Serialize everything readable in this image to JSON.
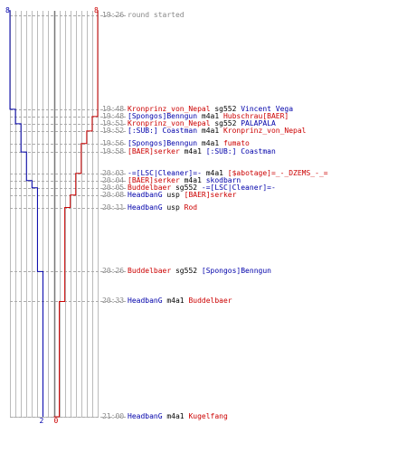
{
  "colors": {
    "team_blue": "#0000aa",
    "team_red": "#cc0000",
    "time": "#888888",
    "grid": "#bbbbbb",
    "dash": "#aaaaaa",
    "center": "#777777",
    "weapon": "#000000"
  },
  "counts": {
    "blue_start": "8",
    "red_start": "8",
    "blue_end": "2",
    "red_end": "0"
  },
  "events": [
    {
      "time": "19:26",
      "parts": [
        {
          "t": "round started",
          "c": "time"
        }
      ],
      "blue": 8,
      "red": 8
    },
    {
      "time": "19:48",
      "parts": [
        {
          "t": "Kronprinz_von_Nepal",
          "c": "red"
        },
        {
          "t": " sg552 ",
          "c": "weapon"
        },
        {
          "t": "Vincent Vega",
          "c": "blue"
        }
      ],
      "blue": 7,
      "red": 8
    },
    {
      "time": "19:48",
      "parts": [
        {
          "t": "[Spongos]Benngun",
          "c": "blue"
        },
        {
          "t": " m4a1 ",
          "c": "weapon"
        },
        {
          "t": "Hubschrau[BAER]",
          "c": "red"
        }
      ],
      "blue": 7,
      "red": 7
    },
    {
      "time": "19:51",
      "parts": [
        {
          "t": "Kronprinz_von_Nepal",
          "c": "red"
        },
        {
          "t": " sg552 ",
          "c": "weapon"
        },
        {
          "t": "PALAPALA",
          "c": "blue"
        }
      ],
      "blue": 6,
      "red": 7
    },
    {
      "time": "19:52",
      "parts": [
        {
          "t": "[:SUB:] Coastman",
          "c": "blue"
        },
        {
          "t": " m4a1 ",
          "c": "weapon"
        },
        {
          "t": "Kronprinz_von_Nepal",
          "c": "red"
        }
      ],
      "blue": 6,
      "red": 6
    },
    {
      "time": "19:56",
      "parts": [
        {
          "t": "[Spongos]Benngun",
          "c": "blue"
        },
        {
          "t": " m4a1 ",
          "c": "weapon"
        },
        {
          "t": "fumato",
          "c": "red"
        }
      ],
      "blue": 6,
      "red": 5
    },
    {
      "time": "19:58",
      "parts": [
        {
          "t": "[BAER]serker",
          "c": "red"
        },
        {
          "t": " m4a1 ",
          "c": "weapon"
        },
        {
          "t": "[:SUB:] Coastman",
          "c": "blue"
        }
      ],
      "blue": 5,
      "red": 5
    },
    {
      "time": "20:03",
      "parts": [
        {
          "t": "-=[LSC|Cleaner]=-",
          "c": "blue"
        },
        {
          "t": " m4a1 ",
          "c": "weapon"
        },
        {
          "t": "[$abotage]=_-_DZEMS_-_=",
          "c": "red"
        }
      ],
      "blue": 5,
      "red": 4
    },
    {
      "time": "20:04",
      "parts": [
        {
          "t": "[BAER]serker",
          "c": "red"
        },
        {
          "t": " m4a1 ",
          "c": "weapon"
        },
        {
          "t": "skodbarn",
          "c": "blue"
        }
      ],
      "blue": 4,
      "red": 4
    },
    {
      "time": "20:05",
      "parts": [
        {
          "t": "Buddelbaer",
          "c": "red"
        },
        {
          "t": " sg552 ",
          "c": "weapon"
        },
        {
          "t": "-=[LSC|Cleaner]=-",
          "c": "blue"
        }
      ],
      "blue": 3,
      "red": 4
    },
    {
      "time": "20:08",
      "parts": [
        {
          "t": "HeadbanG",
          "c": "blue"
        },
        {
          "t": " usp ",
          "c": "weapon"
        },
        {
          "t": "[BAER]serker",
          "c": "red"
        }
      ],
      "blue": 3,
      "red": 3
    },
    {
      "time": "20:11",
      "parts": [
        {
          "t": "HeadbanG",
          "c": "blue"
        },
        {
          "t": " usp ",
          "c": "weapon"
        },
        {
          "t": "Rod",
          "c": "red"
        }
      ],
      "blue": 3,
      "red": 2
    },
    {
      "time": "20:26",
      "parts": [
        {
          "t": "Buddelbaer",
          "c": "red"
        },
        {
          "t": " sg552 ",
          "c": "weapon"
        },
        {
          "t": "[Spongos]Benngun",
          "c": "blue"
        }
      ],
      "blue": 2,
      "red": 2
    },
    {
      "time": "20:33",
      "parts": [
        {
          "t": "HeadbanG",
          "c": "blue"
        },
        {
          "t": " m4a1 ",
          "c": "weapon"
        },
        {
          "t": "Buddelbaer",
          "c": "red"
        }
      ],
      "blue": 2,
      "red": 1
    },
    {
      "time": "21:00",
      "parts": [
        {
          "t": "HeadbanG",
          "c": "blue"
        },
        {
          "t": " m4a1 ",
          "c": "weapon"
        },
        {
          "t": "Kugelfang",
          "c": "red"
        }
      ],
      "blue": 2,
      "red": 0
    }
  ]
}
